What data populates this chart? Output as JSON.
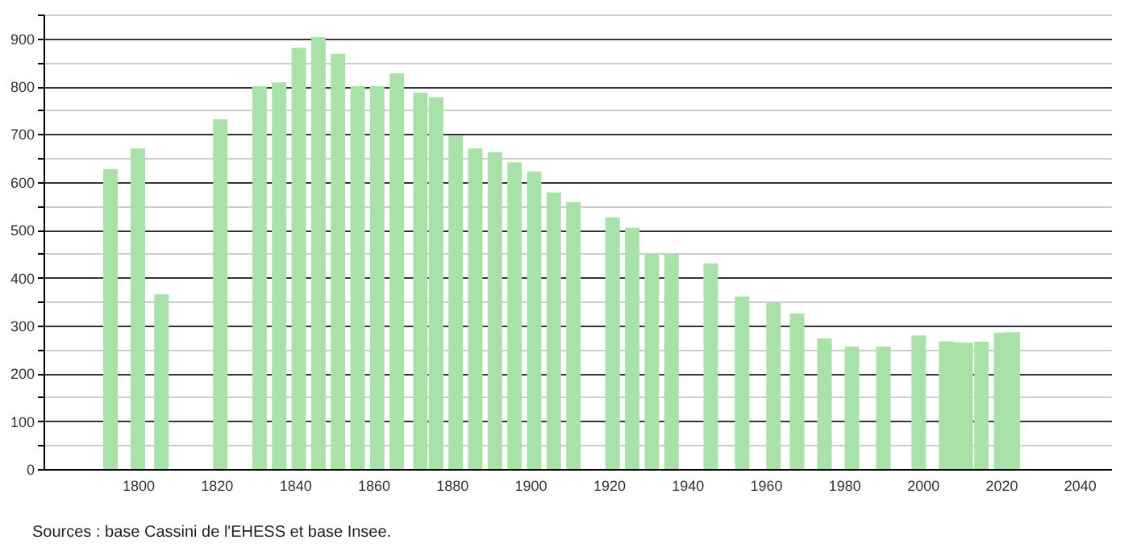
{
  "chart_data": {
    "type": "bar",
    "color": "#a8e2a8",
    "x": [
      1793,
      1800,
      1806,
      1821,
      1831,
      1836,
      1841,
      1846,
      1851,
      1856,
      1861,
      1866,
      1872,
      1876,
      1881,
      1886,
      1891,
      1896,
      1901,
      1906,
      1911,
      1921,
      1926,
      1931,
      1936,
      1946,
      1954,
      1962,
      1968,
      1975,
      1982,
      1990,
      1999,
      2006,
      2008,
      2011,
      2015,
      2020,
      2023
    ],
    "values": [
      627,
      670,
      365,
      731,
      800,
      808,
      880,
      903,
      868,
      800,
      800,
      827,
      787,
      777,
      697,
      670,
      662,
      641,
      622,
      578,
      558,
      526,
      504,
      449,
      449,
      430,
      361,
      347,
      325,
      273,
      256,
      256,
      279,
      267,
      265,
      264,
      266,
      285,
      286
    ],
    "xlim": [
      1778,
      2046
    ],
    "xticks": [
      1800,
      1820,
      1840,
      1860,
      1880,
      1900,
      1920,
      1940,
      1960,
      1980,
      2000,
      2020,
      2040
    ],
    "ylim": [
      0,
      950
    ],
    "yticks": [
      0,
      {
        "value": 50,
        "label": null
      },
      100,
      {
        "value": 150,
        "label": null
      },
      200,
      {
        "value": 250,
        "label": null
      },
      300,
      {
        "value": 350,
        "label": null
      },
      400,
      {
        "value": 450,
        "label": null
      },
      500,
      {
        "value": 550,
        "label": null
      },
      600,
      {
        "value": 650,
        "label": null
      },
      700,
      {
        "value": 750,
        "label": null
      },
      800,
      {
        "value": 850,
        "label": null
      },
      900,
      {
        "value": 950,
        "label": null
      }
    ],
    "grid": "y",
    "annotations": [
      "Sources : base Cassini de l'EHESS et base Insee."
    ]
  }
}
